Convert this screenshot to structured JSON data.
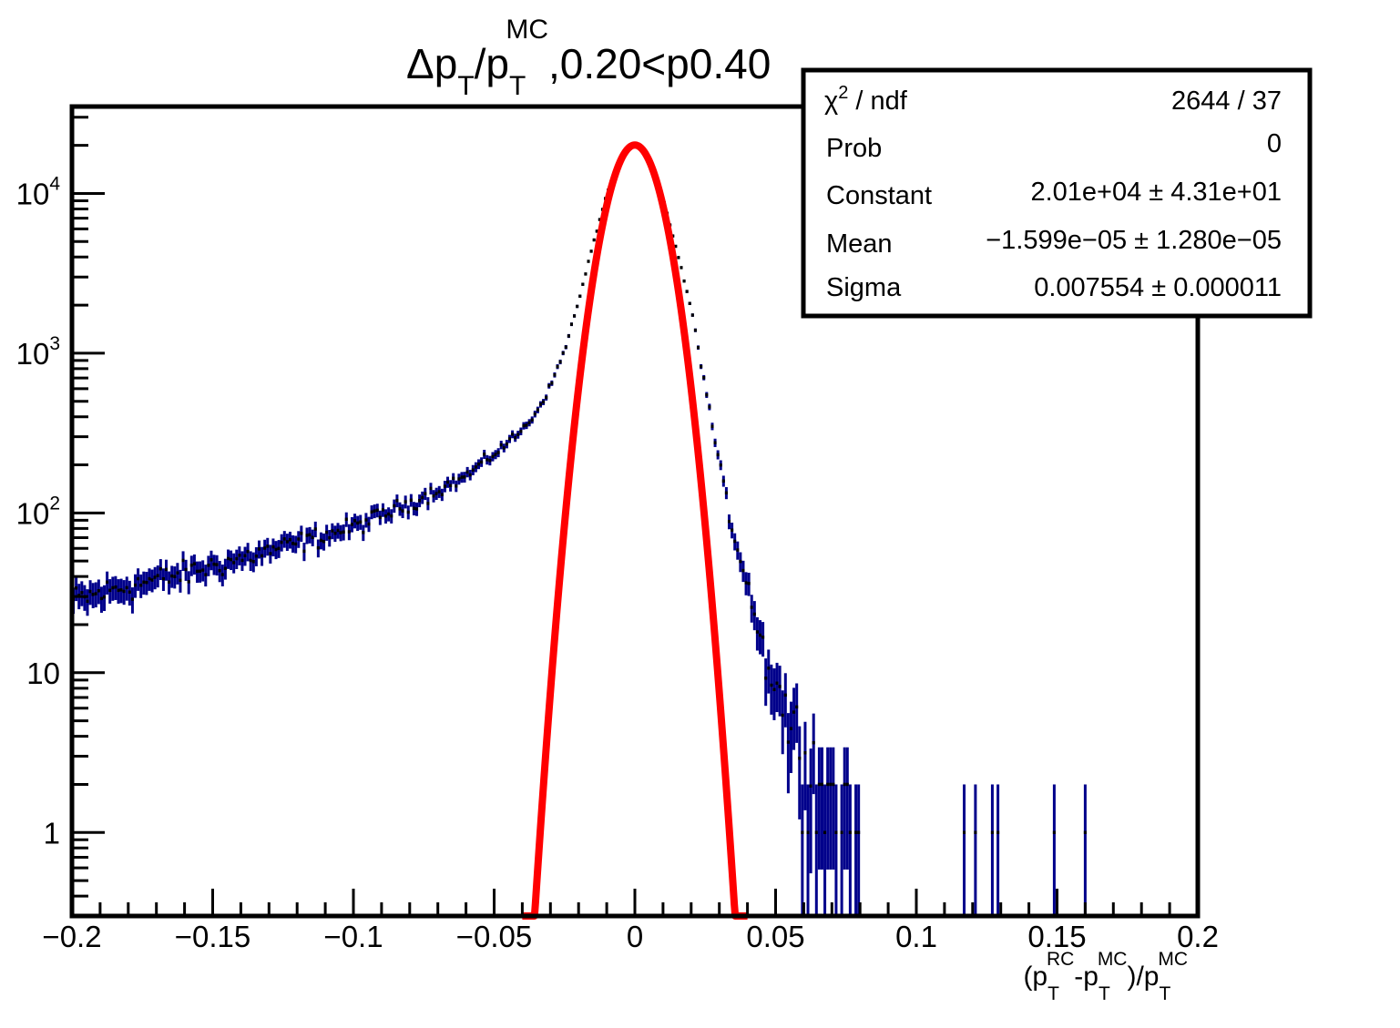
{
  "chart_data": {
    "type": "histogram-fit",
    "title": {
      "text_before": "Δp",
      "sub1": "T",
      "text_mid": "/p",
      "sub2": "T",
      "sup2": "MC",
      "text_after": ",0.20<p0.40"
    },
    "xlabel": {
      "open": "(p",
      "sub_a": "T",
      "sup_a": "RC",
      "mid": "-p",
      "sub_b": "T",
      "sup_b": "MC",
      "close": ")/p",
      "sub_c": "T",
      "sup_c": "MC"
    },
    "ylabel": "",
    "xlim": [
      -0.2,
      0.2
    ],
    "ylim": [
      0.3,
      35000
    ],
    "yscale": "log",
    "x_ticks": [
      {
        "value": -0.2,
        "label": "−0.2"
      },
      {
        "value": -0.15,
        "label": "−0.15"
      },
      {
        "value": -0.1,
        "label": "−0.1"
      },
      {
        "value": -0.05,
        "label": "−0.05"
      },
      {
        "value": 0,
        "label": "0"
      },
      {
        "value": 0.05,
        "label": "0.05"
      },
      {
        "value": 0.1,
        "label": "0.1"
      },
      {
        "value": 0.15,
        "label": "0.15"
      },
      {
        "value": 0.2,
        "label": "0.2"
      }
    ],
    "y_ticks": [
      {
        "value": 1,
        "base": "1",
        "exp": ""
      },
      {
        "value": 10,
        "base": "10",
        "exp": ""
      },
      {
        "value": 100,
        "base": "10",
        "exp": "2"
      },
      {
        "value": 1000,
        "base": "10",
        "exp": "3"
      },
      {
        "value": 10000,
        "base": "10",
        "exp": "4"
      }
    ],
    "histogram_profile": {
      "bin_width": 0.001,
      "x": [
        -0.2,
        -0.18,
        -0.16,
        -0.14,
        -0.12,
        -0.1,
        -0.08,
        -0.06,
        -0.05,
        -0.04,
        -0.035,
        -0.03,
        -0.025,
        -0.02,
        -0.015,
        -0.01,
        -0.005,
        0,
        0.005,
        0.01,
        0.015,
        0.02,
        0.025,
        0.03,
        0.035,
        0.04,
        0.045,
        0.05,
        0.055,
        0.06,
        0.065,
        0.07,
        0.075,
        0.08
      ],
      "y": [
        28,
        35,
        42,
        52,
        65,
        82,
        115,
        170,
        235,
        330,
        430,
        620,
        1050,
        2100,
        4700,
        10000,
        17000,
        20100,
        17000,
        9500,
        4300,
        1900,
        620,
        200,
        75,
        38,
        15,
        9,
        5,
        3.5,
        2.2,
        1.3,
        0.9,
        0.55
      ]
    },
    "histogram_sparse_tail": [
      {
        "x": 0.117,
        "y": 1
      },
      {
        "x": 0.121,
        "y": 1
      },
      {
        "x": 0.127,
        "y": 1
      },
      {
        "x": 0.129,
        "y": 1
      },
      {
        "x": 0.149,
        "y": 1
      },
      {
        "x": 0.16,
        "y": 1
      },
      {
        "x": 0.2,
        "y": 1
      }
    ],
    "fit": {
      "function": "gaus",
      "constant": 20100,
      "mean": -1.599e-05,
      "sigma": 0.007554,
      "range": [
        -0.04,
        0.04
      ]
    },
    "colors": {
      "histogram": "#00008b",
      "markers": "#000000",
      "fit": "#ff0000"
    },
    "stats_box": {
      "chi2": {
        "symbol": "χ",
        "sup": "2",
        "label": " / ndf",
        "value": "2644 / 37"
      },
      "prob": {
        "label": "Prob",
        "value": "0"
      },
      "constant": {
        "label": "Constant",
        "value": "2.01e+04 ± 4.31e+01"
      },
      "mean": {
        "label": "Mean",
        "value": "−1.599e−05 ± 1.280e−05"
      },
      "sigma": {
        "label": "Sigma",
        "value": "0.007554 ± 0.000011"
      }
    }
  }
}
